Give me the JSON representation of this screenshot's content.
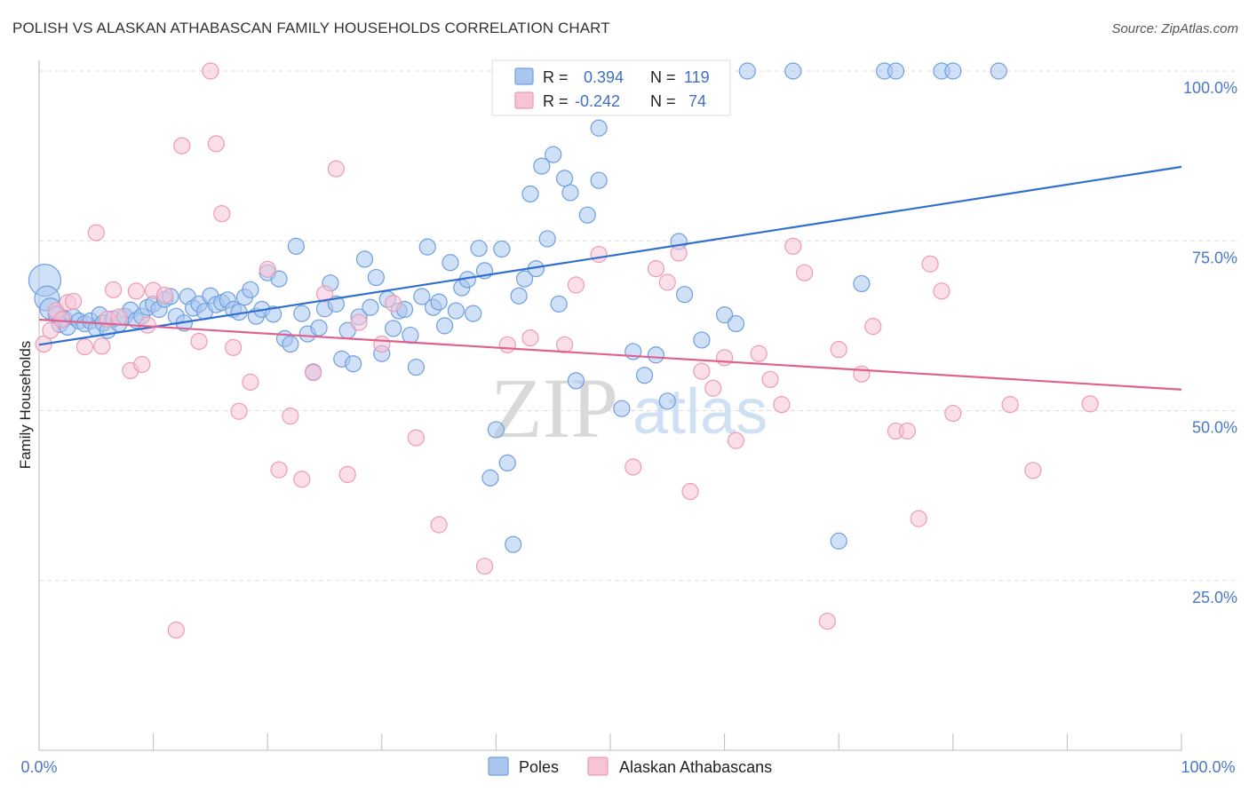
{
  "chart_data": {
    "type": "scatter",
    "title": "POLISH VS ALASKAN ATHABASCAN FAMILY HOUSEHOLDS CORRELATION CHART",
    "source": "Source: ZipAtlas.com",
    "xlabel": "",
    "ylabel": "Family Households",
    "xlim": [
      0,
      100
    ],
    "ylim": [
      0,
      105
    ],
    "x_tick_labels": [
      "0.0%",
      "100.0%"
    ],
    "y_ticks": [
      {
        "value": 25,
        "label": "25.0%"
      },
      {
        "value": 50,
        "label": "50.0%"
      },
      {
        "value": 75,
        "label": "75.0%"
      },
      {
        "value": 100,
        "label": "100.0%"
      }
    ],
    "grid": true,
    "watermark": {
      "zip": "ZIP",
      "atlas": "atlas"
    },
    "stats": [
      {
        "r_label": "R =",
        "r": "0.394",
        "n_label": "N =",
        "n": "119"
      },
      {
        "r_label": "R =",
        "r": "-0.242",
        "n_label": "N =",
        "n": "74"
      }
    ],
    "series": [
      {
        "name": "Poles",
        "color": "#6f9fe0",
        "fill": "#a9c6ef",
        "line_color": "#2f6fd0",
        "trend": {
          "x": [
            0,
            100
          ],
          "y": [
            59.7,
            85.9
          ]
        },
        "points": [
          [
            0.5,
            69.2
          ],
          [
            0.7,
            66.5
          ],
          [
            1,
            65
          ],
          [
            1.5,
            64.2
          ],
          [
            1.8,
            62.7
          ],
          [
            2.2,
            63.5
          ],
          [
            2.5,
            62.3
          ],
          [
            3,
            63.8
          ],
          [
            3.5,
            63.2
          ],
          [
            4,
            62.8
          ],
          [
            4.5,
            63.2
          ],
          [
            5,
            62.1
          ],
          [
            5.3,
            64.1
          ],
          [
            5.6,
            62.9
          ],
          [
            6,
            61.8
          ],
          [
            6.5,
            63.5
          ],
          [
            7,
            62.8
          ],
          [
            7.5,
            63.9
          ],
          [
            8,
            64.8
          ],
          [
            8.5,
            63.3
          ],
          [
            9,
            63.9
          ],
          [
            9.5,
            65.2
          ],
          [
            10,
            65.7
          ],
          [
            10.5,
            64.9
          ],
          [
            11,
            66.4
          ],
          [
            11.5,
            66.8
          ],
          [
            12,
            63.9
          ],
          [
            12.7,
            62.9
          ],
          [
            13,
            66.8
          ],
          [
            13.5,
            65.1
          ],
          [
            14,
            65.7
          ],
          [
            14.5,
            64.6
          ],
          [
            15,
            66.9
          ],
          [
            15.5,
            65.6
          ],
          [
            16,
            65.9
          ],
          [
            16.5,
            66.3
          ],
          [
            17,
            64.9
          ],
          [
            17.5,
            64.5
          ],
          [
            18,
            66.7
          ],
          [
            18.5,
            67.8
          ],
          [
            19,
            63.9
          ],
          [
            19.5,
            64.9
          ],
          [
            20,
            70.3
          ],
          [
            20.5,
            64.2
          ],
          [
            21,
            69.4
          ],
          [
            21.5,
            60.6
          ],
          [
            22,
            59.8
          ],
          [
            22.5,
            74.2
          ],
          [
            23,
            64.3
          ],
          [
            23.5,
            61.3
          ],
          [
            24,
            55.7
          ],
          [
            24.5,
            62.2
          ],
          [
            25,
            65
          ],
          [
            25.5,
            68.8
          ],
          [
            26,
            65.7
          ],
          [
            26.5,
            57.6
          ],
          [
            27,
            61.8
          ],
          [
            27.5,
            56.9
          ],
          [
            28,
            63.8
          ],
          [
            28.5,
            72.3
          ],
          [
            29,
            65.2
          ],
          [
            29.5,
            69.6
          ],
          [
            30,
            58.4
          ],
          [
            30.5,
            66.4
          ],
          [
            31,
            62.1
          ],
          [
            31.5,
            64.7
          ],
          [
            32,
            64.9
          ],
          [
            32.5,
            61.1
          ],
          [
            33,
            56.4
          ],
          [
            33.5,
            66.8
          ],
          [
            34,
            74.1
          ],
          [
            34.5,
            65.2
          ],
          [
            35,
            66
          ],
          [
            35.5,
            62.5
          ],
          [
            36,
            71.8
          ],
          [
            36.5,
            64.7
          ],
          [
            37,
            68.1
          ],
          [
            37.5,
            69.3
          ],
          [
            38,
            64.3
          ],
          [
            38.5,
            73.9
          ],
          [
            39,
            70.6
          ],
          [
            39.5,
            40.1
          ],
          [
            40,
            47.2
          ],
          [
            40.5,
            73.8
          ],
          [
            41,
            42.3
          ],
          [
            41.5,
            30.3
          ],
          [
            42,
            66.9
          ],
          [
            42.5,
            69.4
          ],
          [
            43,
            81.9
          ],
          [
            43.5,
            70.9
          ],
          [
            44,
            86
          ],
          [
            44.5,
            75.3
          ],
          [
            45,
            87.7
          ],
          [
            45.5,
            65.7
          ],
          [
            46,
            84.2
          ],
          [
            46.5,
            82.1
          ],
          [
            47,
            54.4
          ],
          [
            48,
            78.8
          ],
          [
            49,
            91.6
          ],
          [
            49,
            83.9
          ],
          [
            51,
            50.3
          ],
          [
            52,
            58.7
          ],
          [
            53,
            55.2
          ],
          [
            54,
            58.2
          ],
          [
            55,
            51.4
          ],
          [
            56,
            74.9
          ],
          [
            56.5,
            67.1
          ],
          [
            58,
            60.4
          ],
          [
            60,
            64.1
          ],
          [
            61,
            62.8
          ],
          [
            62,
            100
          ],
          [
            66,
            100
          ],
          [
            70,
            30.8
          ],
          [
            72,
            68.7
          ],
          [
            74,
            100
          ],
          [
            75,
            100
          ],
          [
            79,
            100
          ],
          [
            80,
            100
          ],
          [
            84,
            100
          ]
        ]
      },
      {
        "name": "Alaskan Athabascans",
        "color": "#ee9ab6",
        "fill": "#f7c4d5",
        "line_color": "#e0608e",
        "trend": {
          "x": [
            0,
            100
          ],
          "y": [
            63.4,
            53.1
          ]
        },
        "points": [
          [
            0.4,
            59.8
          ],
          [
            1,
            61.8
          ],
          [
            1.5,
            64.7
          ],
          [
            2,
            63.4
          ],
          [
            2.5,
            65.9
          ],
          [
            3,
            66.1
          ],
          [
            4,
            59.4
          ],
          [
            5,
            76.2
          ],
          [
            5.5,
            59.5
          ],
          [
            6,
            63.5
          ],
          [
            6.5,
            67.8
          ],
          [
            7,
            63.8
          ],
          [
            8,
            55.9
          ],
          [
            8.5,
            67.6
          ],
          [
            9,
            56.8
          ],
          [
            9.5,
            62.6
          ],
          [
            10,
            67.7
          ],
          [
            11,
            67
          ],
          [
            12,
            17.7
          ],
          [
            12.5,
            89
          ],
          [
            14,
            60.2
          ],
          [
            15,
            100
          ],
          [
            15.5,
            89.3
          ],
          [
            16,
            79
          ],
          [
            17,
            59.3
          ],
          [
            17.5,
            49.9
          ],
          [
            18.5,
            54.2
          ],
          [
            20,
            70.8
          ],
          [
            21,
            41.3
          ],
          [
            22,
            49.2
          ],
          [
            23,
            39.9
          ],
          [
            24,
            55.6
          ],
          [
            25,
            67.2
          ],
          [
            26,
            85.6
          ],
          [
            27,
            40.6
          ],
          [
            28,
            63
          ],
          [
            30,
            59.8
          ],
          [
            31,
            65.8
          ],
          [
            33,
            46
          ],
          [
            35,
            33.2
          ],
          [
            39,
            27.1
          ],
          [
            41,
            59.7
          ],
          [
            43,
            60.7
          ],
          [
            46,
            59.7
          ],
          [
            47,
            68.5
          ],
          [
            49,
            73
          ],
          [
            50,
            100
          ],
          [
            52,
            41.7
          ],
          [
            54,
            70.9
          ],
          [
            55,
            68.9
          ],
          [
            56,
            73.2
          ],
          [
            57,
            38.1
          ],
          [
            58,
            55.8
          ],
          [
            59,
            53.3
          ],
          [
            60,
            57.8
          ],
          [
            61,
            45.6
          ],
          [
            63,
            58.4
          ],
          [
            64,
            54.6
          ],
          [
            65,
            50.9
          ],
          [
            66,
            74.2
          ],
          [
            67,
            70.3
          ],
          [
            69,
            19
          ],
          [
            70,
            59
          ],
          [
            72,
            55.4
          ],
          [
            73,
            62.4
          ],
          [
            75,
            47
          ],
          [
            76,
            47
          ],
          [
            77,
            34.1
          ],
          [
            78,
            71.6
          ],
          [
            79,
            67.6
          ],
          [
            80,
            49.6
          ],
          [
            85,
            50.9
          ],
          [
            87,
            41.2
          ],
          [
            92,
            51
          ]
        ]
      }
    ]
  }
}
